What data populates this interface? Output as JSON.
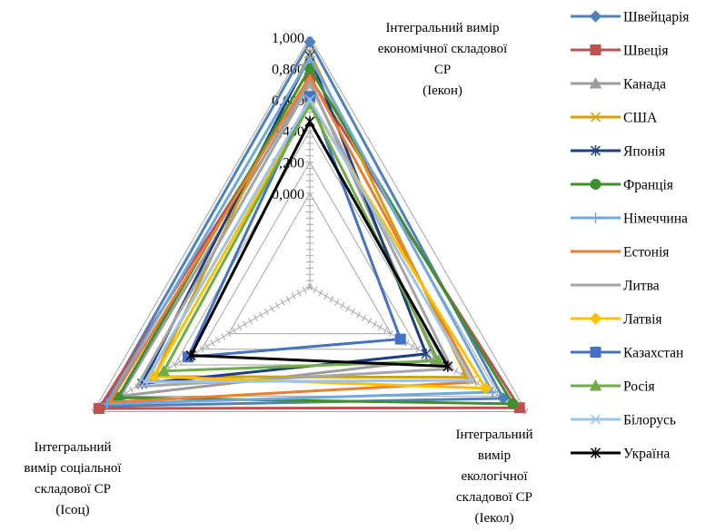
{
  "chart_data": {
    "type": "radar",
    "axes": [
      {
        "label_lines": [
          "Інтегральний вимір",
          "економічної складової",
          "СР",
          "(Іекон)"
        ]
      },
      {
        "label_lines": [
          "Інтегральний",
          "вимір",
          "екологічної",
          "складової СР",
          "(Іекол)"
        ]
      },
      {
        "label_lines": [
          "Інтегральний",
          "вимір соціальної",
          "складової СР",
          "(Ісоц)"
        ]
      }
    ],
    "r_range": [
      -0.6,
      1.0
    ],
    "ticks": [
      0.0,
      0.2,
      0.4,
      0.6,
      0.8,
      1.0
    ],
    "tick_labels": [
      "0,000",
      "0,200",
      "0,400",
      "0,600",
      "0,800",
      "1,000"
    ],
    "grid": true,
    "legend_position": "right",
    "series": [
      {
        "name": "Швейцарія",
        "color": "#4f81bd",
        "marker": "diamond",
        "values": [
          0.97,
          0.83,
          0.93
        ]
      },
      {
        "name": "Швеція",
        "color": "#c0504d",
        "marker": "square",
        "values": [
          0.74,
          0.95,
          0.96
        ]
      },
      {
        "name": "Канада",
        "color": "#9c9c9c",
        "marker": "triangle",
        "values": [
          0.72,
          0.33,
          0.8
        ]
      },
      {
        "name": "США",
        "color": "#d4a017",
        "marker": "x",
        "values": [
          0.9,
          0.56,
          0.55
        ]
      },
      {
        "name": "Японія",
        "color": "#1f3f7f",
        "marker": "star",
        "values": [
          0.88,
          0.26,
          0.64
        ]
      },
      {
        "name": "Франція",
        "color": "#3f8f2f",
        "marker": "circle",
        "values": [
          0.8,
          0.9,
          0.82
        ]
      },
      {
        "name": "Німеччина",
        "color": "#6fa8dc",
        "marker": "plus",
        "values": [
          0.87,
          0.75,
          0.9
        ]
      },
      {
        "name": "Естонія",
        "color": "#ed7d31",
        "marker": "none",
        "values": [
          0.75,
          0.62,
          0.88
        ]
      },
      {
        "name": "Литва",
        "color": "#a5a5a5",
        "marker": "none",
        "values": [
          0.7,
          0.45,
          0.68
        ]
      },
      {
        "name": "Латвія",
        "color": "#ffc000",
        "marker": "diamond",
        "values": [
          0.58,
          0.7,
          0.55
        ]
      },
      {
        "name": "Казахстан",
        "color": "#4472c4",
        "marker": "square",
        "values": [
          0.62,
          0.07,
          0.3
        ]
      },
      {
        "name": "Росія",
        "color": "#70ad47",
        "marker": "triangle",
        "values": [
          0.57,
          0.35,
          0.48
        ]
      },
      {
        "name": "Білорусь",
        "color": "#9dc3e6",
        "marker": "x",
        "values": [
          0.6,
          0.6,
          0.62
        ]
      },
      {
        "name": "Україна",
        "color": "#000000",
        "marker": "star",
        "values": [
          0.46,
          0.42,
          0.28
        ]
      }
    ]
  }
}
